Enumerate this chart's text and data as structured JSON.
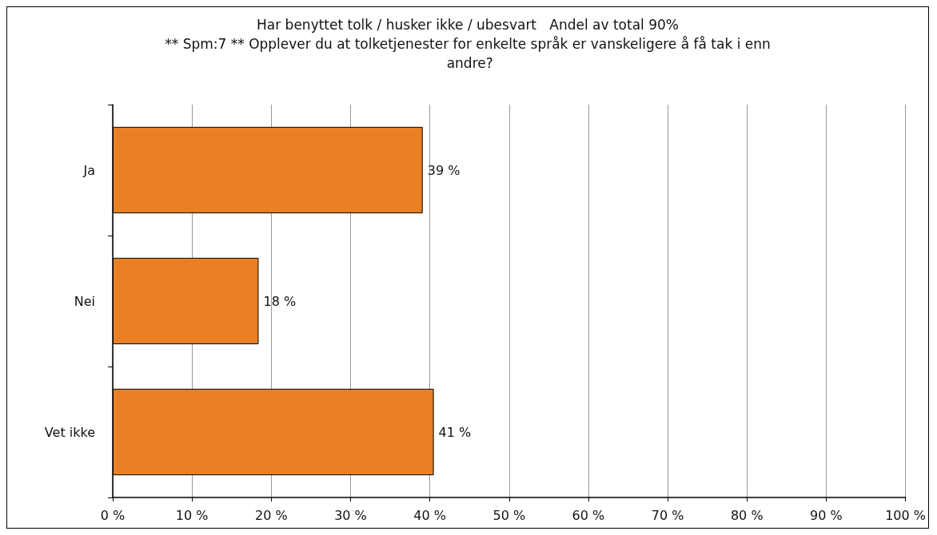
{
  "chart_data": {
    "type": "bar",
    "orientation": "horizontal",
    "title": "Har benyttet tolk / husker ikke / ubesvart   Andel av total 90%",
    "subtitle": "** Spm:7 ** Opplever du at tolketjenester for enkelte språk er vanskeligere å få tak i enn andre?",
    "categories": [
      "Ja",
      "Nei",
      "Vet ikke"
    ],
    "values": [
      39.1,
      18.4,
      40.5
    ],
    "value_labels": [
      "39 %",
      "18 %",
      "41 %"
    ],
    "color": "#e98025",
    "xlim": [
      0,
      100
    ],
    "xticks": [
      {
        "value": 0,
        "label": "0 %"
      },
      {
        "value": 10,
        "label": "10 %"
      },
      {
        "value": 20,
        "label": "20 %"
      },
      {
        "value": 30,
        "label": "30 %"
      },
      {
        "value": 40,
        "label": "40 %"
      },
      {
        "value": 50,
        "label": "50 %"
      },
      {
        "value": 60,
        "label": "60 %"
      },
      {
        "value": 70,
        "label": "70 %"
      },
      {
        "value": 80,
        "label": "80 %"
      },
      {
        "value": 90,
        "label": "90 %"
      },
      {
        "value": 100,
        "label": "100 %"
      }
    ],
    "grid": "x"
  }
}
